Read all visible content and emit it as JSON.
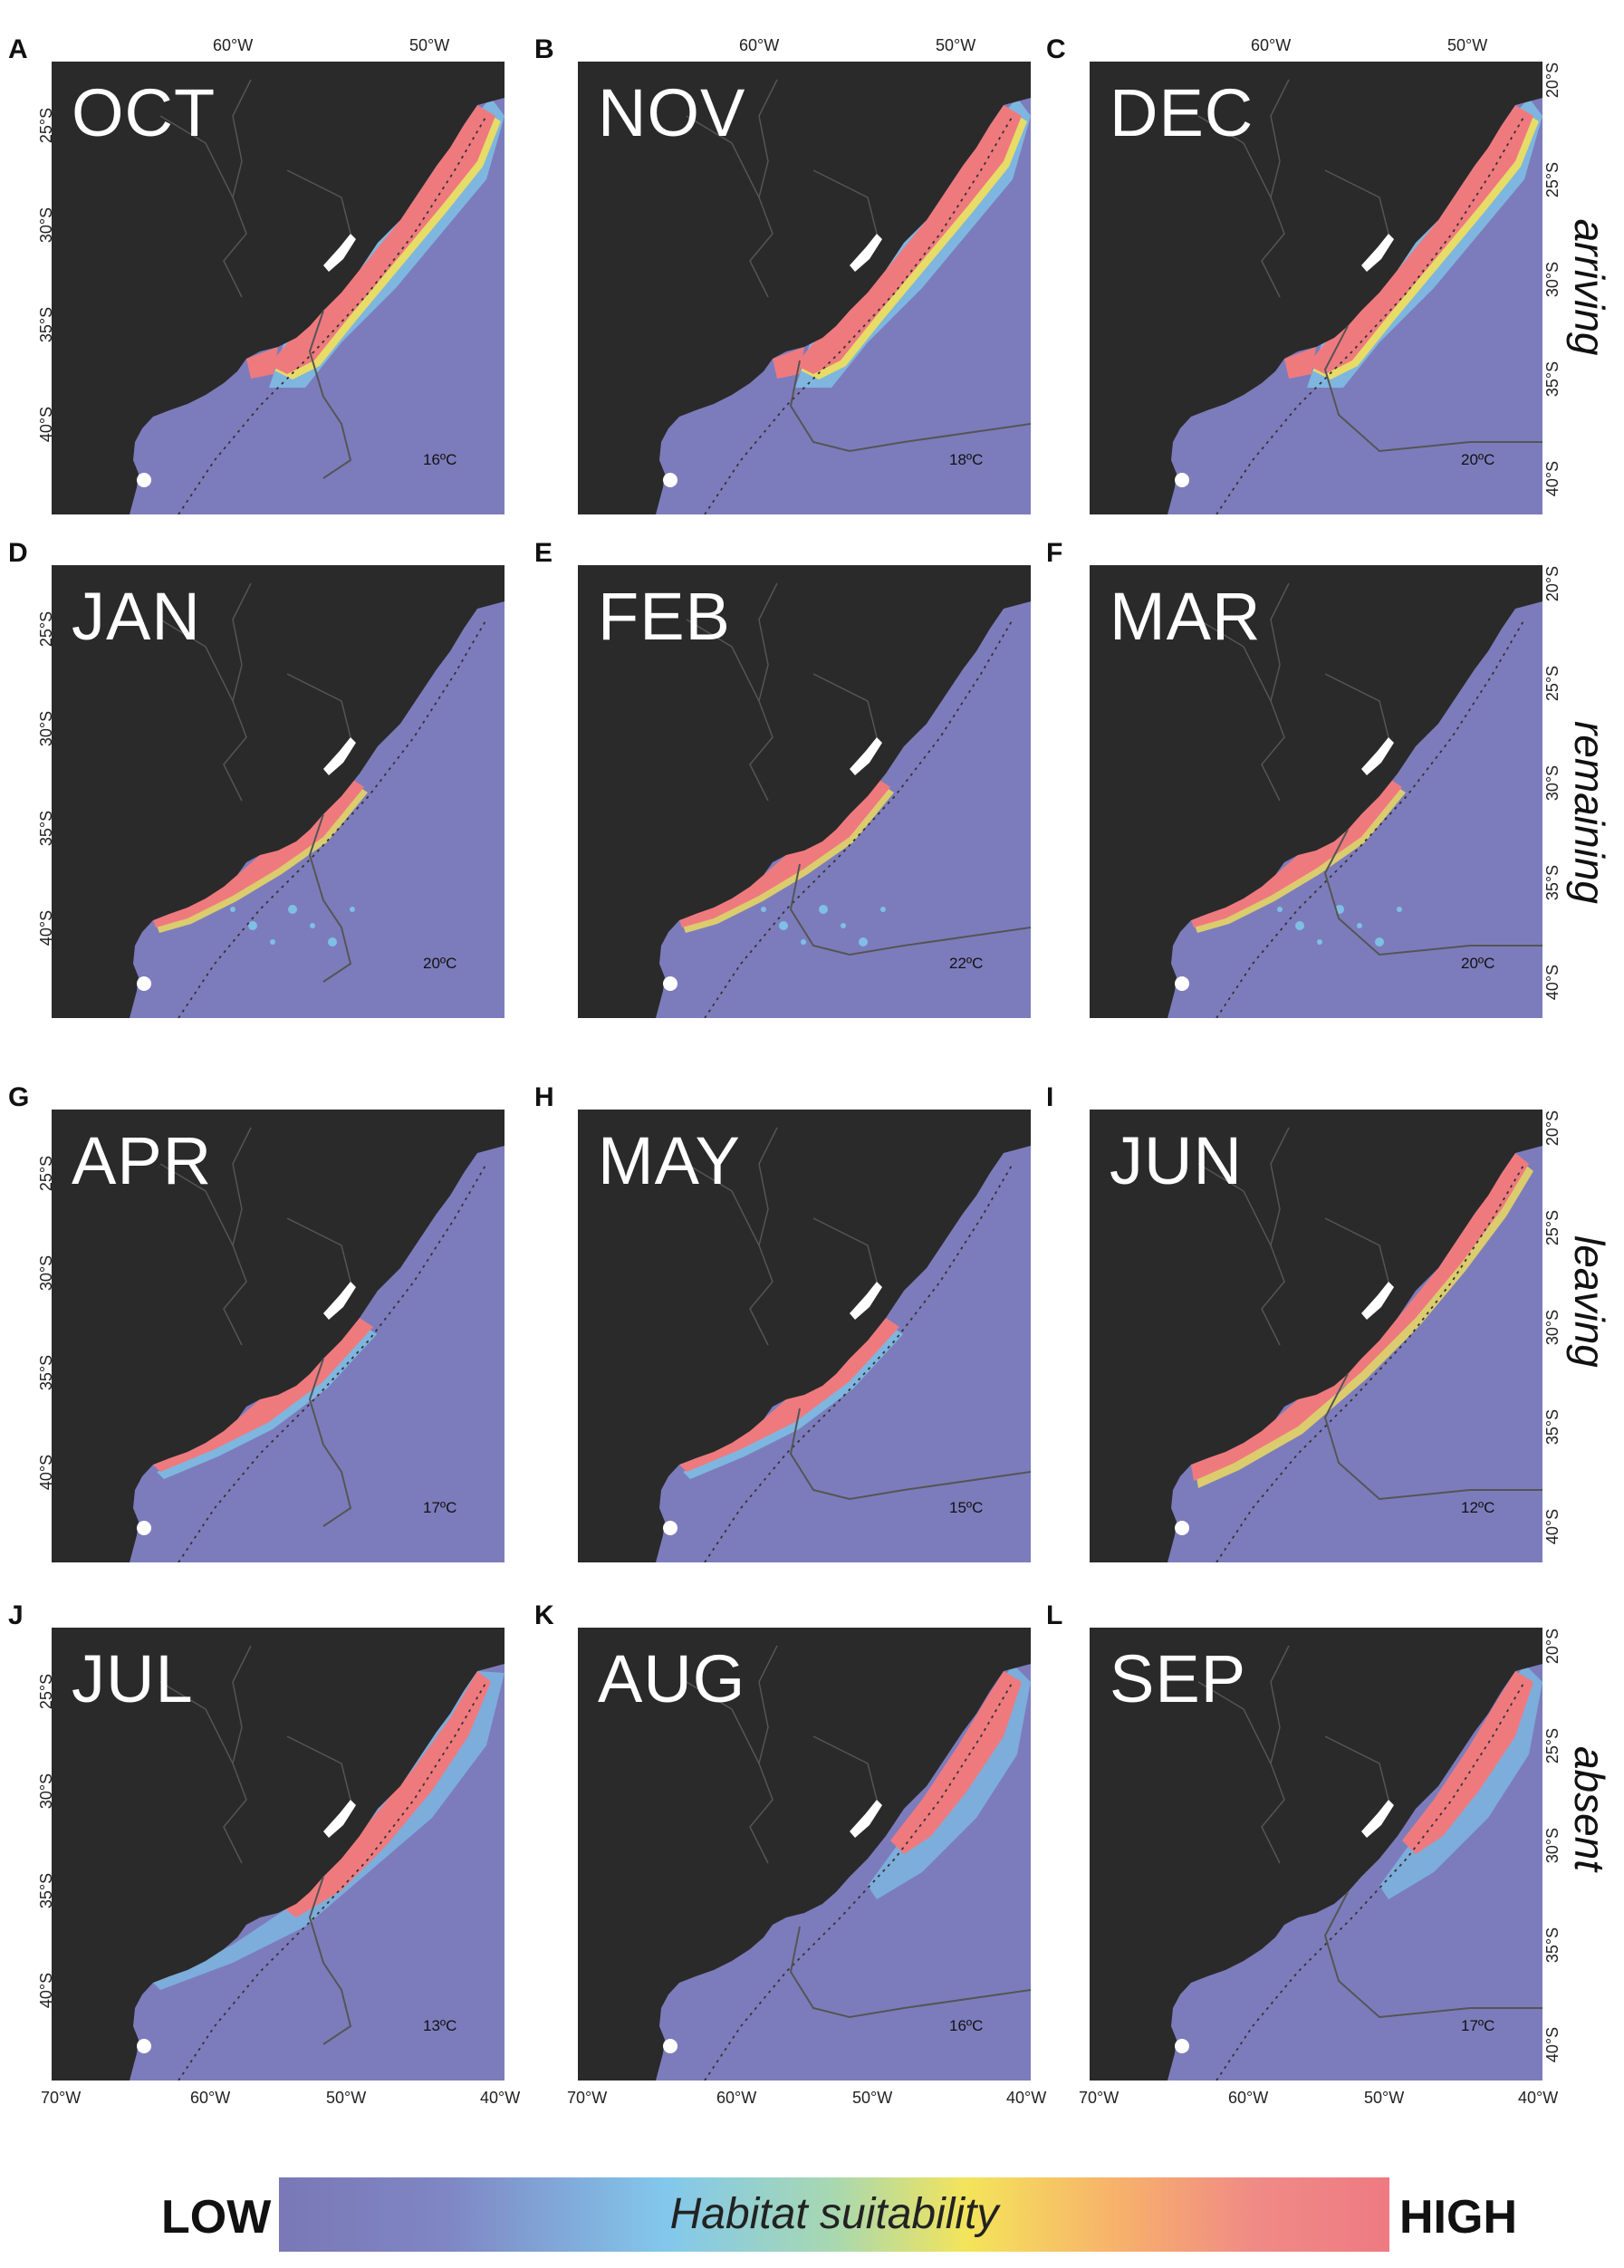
{
  "colors": {
    "land": "#2a2a2a",
    "ocean": "#7c7cbc",
    "high": "#ef7a7e",
    "mid_yellow": "#f2e05a",
    "mid_blue": "#7fcfee",
    "border": "#555555",
    "contour": "#555555"
  },
  "panels": [
    {
      "letter": "A",
      "month": "OCT",
      "temp": "16ºC",
      "phase": "arriving"
    },
    {
      "letter": "B",
      "month": "NOV",
      "temp": "18ºC",
      "phase": "arriving"
    },
    {
      "letter": "C",
      "month": "DEC",
      "temp": "20ºC",
      "phase": "arriving"
    },
    {
      "letter": "D",
      "month": "JAN",
      "temp": "20ºC",
      "phase": "remaining"
    },
    {
      "letter": "E",
      "month": "FEB",
      "temp": "22ºC",
      "phase": "remaining"
    },
    {
      "letter": "F",
      "month": "MAR",
      "temp": "20ºC",
      "phase": "remaining"
    },
    {
      "letter": "G",
      "month": "APR",
      "temp": "17ºC",
      "phase": "leaving"
    },
    {
      "letter": "H",
      "month": "MAY",
      "temp": "15ºC",
      "phase": "leaving"
    },
    {
      "letter": "I",
      "month": "JUN",
      "temp": "12ºC",
      "phase": "leaving"
    },
    {
      "letter": "J",
      "month": "JUL",
      "temp": "13ºC",
      "phase": "absent"
    },
    {
      "letter": "K",
      "month": "AUG",
      "temp": "16ºC",
      "phase": "absent"
    },
    {
      "letter": "L",
      "month": "SEP",
      "temp": "17ºC",
      "phase": "absent"
    }
  ],
  "phases": [
    "arriving",
    "remaining",
    "leaving",
    "absent"
  ],
  "axes": {
    "top_lon": [
      "60°W",
      "50°W"
    ],
    "bottom_lon": [
      "70°W",
      "60°W",
      "50°W",
      "40°W"
    ],
    "left_lat": [
      "25°S",
      "30°S",
      "35°S",
      "40°S"
    ],
    "right_lat": [
      "20°S",
      "25°S",
      "30°S",
      "35°S",
      "40°S"
    ]
  },
  "legend": {
    "low": "LOW",
    "high": "HIGH",
    "title": "Habitat suitability"
  }
}
